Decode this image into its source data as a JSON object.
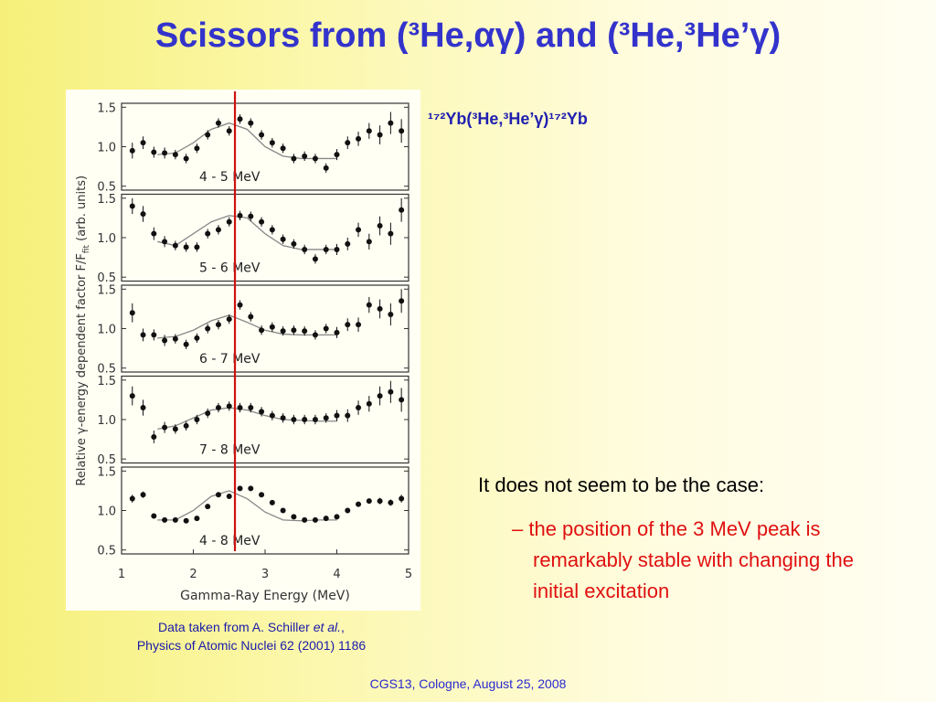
{
  "title": "Scissors from (³He,αγ) and (³He,³He’γ)",
  "reaction": "¹⁷²Yb(³He,³He’γ)¹⁷²Yb",
  "bullets": {
    "main": "It does not seem to be the case:",
    "sub": "– the position of the 3 MeV peak is remarkably stable with changing the initial excitation"
  },
  "citation": {
    "line1_start": "Data taken from A. Schiller ",
    "line1_italic": "et al.",
    "line1_end": ",",
    "line2": "Physics of Atomic Nuclei 62 (2001) 1186"
  },
  "footer": "CGS13, Cologne, August 25, 2008",
  "marker_x": 2.58,
  "chart_data": [
    {
      "type": "scatter",
      "label": "4 - 5 MeV",
      "ylabel": {
        "main": "Relative γ-energy dependent factor F/F",
        "sub": "fit",
        "end": " (arb. units)"
      },
      "x": [
        1.15,
        1.3,
        1.45,
        1.6,
        1.75,
        1.9,
        2.05,
        2.2,
        2.35,
        2.5,
        2.65,
        2.8,
        2.95,
        3.1,
        3.25,
        3.4,
        3.55,
        3.7,
        3.85,
        4.0,
        4.15,
        4.3,
        4.45,
        4.6,
        4.75,
        4.9
      ],
      "values": [
        0.95,
        1.05,
        0.93,
        0.92,
        0.9,
        0.85,
        0.98,
        1.15,
        1.3,
        1.2,
        1.35,
        1.3,
        1.15,
        1.05,
        0.98,
        0.85,
        0.88,
        0.85,
        0.73,
        0.9,
        1.05,
        1.1,
        1.2,
        1.15,
        1.3,
        1.2
      ],
      "errors": [
        0.1,
        0.08,
        0.07,
        0.07,
        0.06,
        0.06,
        0.06,
        0.06,
        0.06,
        0.06,
        0.06,
        0.06,
        0.06,
        0.06,
        0.06,
        0.06,
        0.06,
        0.06,
        0.06,
        0.07,
        0.08,
        0.09,
        0.1,
        0.12,
        0.14,
        0.15
      ],
      "fit_x": [
        1.5,
        1.75,
        2.0,
        2.25,
        2.5,
        2.75,
        3.0,
        3.25,
        3.5,
        3.75,
        4.0
      ],
      "fit": [
        0.9,
        0.92,
        1.05,
        1.22,
        1.3,
        1.22,
        1.0,
        0.88,
        0.85,
        0.85,
        0.85
      ],
      "xlim": [
        1,
        5
      ],
      "ylim": [
        0.45,
        1.55
      ],
      "yticks": [
        0.5,
        {
          "value": 1,
          "label": "1.0"
        },
        1.5
      ],
      "color": "#111111"
    },
    {
      "type": "scatter",
      "label": "5 - 6 MeV",
      "x": [
        1.15,
        1.3,
        1.45,
        1.6,
        1.75,
        1.9,
        2.05,
        2.2,
        2.35,
        2.5,
        2.65,
        2.8,
        2.95,
        3.1,
        3.25,
        3.4,
        3.55,
        3.7,
        3.85,
        4.0,
        4.15,
        4.3,
        4.45,
        4.6,
        4.75,
        4.9
      ],
      "values": [
        1.4,
        1.3,
        1.05,
        0.95,
        0.9,
        0.88,
        0.88,
        1.05,
        1.1,
        1.2,
        1.28,
        1.27,
        1.2,
        1.1,
        0.98,
        0.92,
        0.85,
        0.73,
        0.85,
        0.85,
        0.92,
        1.1,
        0.95,
        1.15,
        1.05,
        1.35
      ],
      "errors": [
        0.1,
        0.1,
        0.08,
        0.07,
        0.06,
        0.06,
        0.06,
        0.06,
        0.06,
        0.06,
        0.06,
        0.06,
        0.06,
        0.06,
        0.06,
        0.06,
        0.06,
        0.06,
        0.06,
        0.07,
        0.08,
        0.09,
        0.1,
        0.12,
        0.14,
        0.15
      ],
      "fit_x": [
        1.5,
        1.75,
        2.0,
        2.25,
        2.5,
        2.75,
        3.0,
        3.25,
        3.5,
        3.75,
        4.0
      ],
      "fit": [
        0.95,
        0.9,
        1.05,
        1.2,
        1.28,
        1.25,
        1.05,
        0.9,
        0.85,
        0.85,
        0.85
      ],
      "xlim": [
        1,
        5
      ],
      "ylim": [
        0.45,
        1.55
      ],
      "yticks": [
        0.5,
        {
          "value": 1,
          "label": "1.0"
        },
        1.5
      ],
      "color": "#111111"
    },
    {
      "type": "scatter",
      "label": "6 - 7 MeV",
      "x": [
        1.15,
        1.3,
        1.45,
        1.6,
        1.75,
        1.9,
        2.05,
        2.2,
        2.35,
        2.5,
        2.65,
        2.8,
        2.95,
        3.1,
        3.25,
        3.4,
        3.55,
        3.7,
        3.85,
        4.0,
        4.15,
        4.3,
        4.45,
        4.6,
        4.75,
        4.9
      ],
      "values": [
        1.2,
        0.92,
        0.92,
        0.85,
        0.87,
        0.8,
        0.88,
        1.0,
        1.05,
        1.12,
        1.3,
        1.15,
        0.98,
        1.02,
        0.97,
        0.98,
        0.97,
        0.92,
        1.0,
        0.95,
        1.05,
        1.05,
        1.3,
        1.25,
        1.18,
        1.35
      ],
      "errors": [
        0.12,
        0.08,
        0.07,
        0.07,
        0.06,
        0.06,
        0.06,
        0.06,
        0.06,
        0.06,
        0.06,
        0.06,
        0.06,
        0.06,
        0.06,
        0.06,
        0.06,
        0.06,
        0.06,
        0.07,
        0.08,
        0.09,
        0.1,
        0.12,
        0.14,
        0.15
      ],
      "fit_x": [
        1.5,
        1.75,
        2.0,
        2.25,
        2.5,
        2.75,
        3.0,
        3.25,
        3.5,
        3.75,
        4.0
      ],
      "fit": [
        0.88,
        0.9,
        0.98,
        1.1,
        1.17,
        1.08,
        0.98,
        0.93,
        0.92,
        0.92,
        0.92
      ],
      "xlim": [
        1,
        5
      ],
      "ylim": [
        0.45,
        1.55
      ],
      "yticks": [
        0.5,
        {
          "value": 1,
          "label": "1.0"
        },
        1.5
      ],
      "color": "#111111"
    },
    {
      "type": "scatter",
      "label": "7 - 8 MeV",
      "x": [
        1.15,
        1.3,
        1.45,
        1.6,
        1.75,
        1.9,
        2.05,
        2.2,
        2.35,
        2.5,
        2.65,
        2.8,
        2.95,
        3.1,
        3.25,
        3.4,
        3.55,
        3.7,
        3.85,
        4.0,
        4.15,
        4.3,
        4.45,
        4.6,
        4.75,
        4.9
      ],
      "values": [
        1.3,
        1.15,
        0.78,
        0.9,
        0.88,
        0.92,
        1.0,
        1.08,
        1.15,
        1.17,
        1.15,
        1.15,
        1.1,
        1.05,
        1.02,
        1.0,
        1.0,
        1.0,
        1.02,
        1.05,
        1.05,
        1.15,
        1.2,
        1.3,
        1.35,
        1.25
      ],
      "errors": [
        0.12,
        0.1,
        0.08,
        0.07,
        0.06,
        0.06,
        0.06,
        0.06,
        0.06,
        0.06,
        0.06,
        0.06,
        0.06,
        0.06,
        0.06,
        0.06,
        0.06,
        0.06,
        0.06,
        0.07,
        0.08,
        0.09,
        0.1,
        0.12,
        0.14,
        0.15
      ],
      "fit_x": [
        1.5,
        1.75,
        2.0,
        2.25,
        2.5,
        2.75,
        3.0,
        3.25,
        3.5,
        3.75,
        4.0
      ],
      "fit": [
        0.88,
        0.92,
        1.02,
        1.12,
        1.15,
        1.12,
        1.05,
        1.0,
        0.99,
        0.98,
        0.98
      ],
      "xlim": [
        1,
        5
      ],
      "ylim": [
        0.45,
        1.55
      ],
      "yticks": [
        0.5,
        {
          "value": 1,
          "label": "1.0"
        },
        1.5
      ],
      "color": "#111111"
    },
    {
      "type": "scatter",
      "label": "4 - 8 MeV",
      "xlabel": "Gamma-Ray Energy (MeV)",
      "x": [
        1.15,
        1.3,
        1.45,
        1.6,
        1.75,
        1.9,
        2.05,
        2.2,
        2.35,
        2.5,
        2.65,
        2.8,
        2.95,
        3.1,
        3.25,
        3.4,
        3.55,
        3.7,
        3.85,
        4.0,
        4.15,
        4.3,
        4.45,
        4.6,
        4.75,
        4.9
      ],
      "values": [
        1.15,
        1.2,
        0.93,
        0.88,
        0.88,
        0.87,
        0.9,
        1.05,
        1.2,
        1.18,
        1.28,
        1.28,
        1.2,
        1.1,
        1.0,
        0.92,
        0.88,
        0.88,
        0.9,
        0.92,
        1.0,
        1.08,
        1.12,
        1.12,
        1.1,
        1.15
      ],
      "errors": [
        0.05,
        0.04,
        0.03,
        0.03,
        0.03,
        0.03,
        0.03,
        0.03,
        0.03,
        0.03,
        0.03,
        0.03,
        0.03,
        0.03,
        0.03,
        0.03,
        0.03,
        0.03,
        0.03,
        0.03,
        0.03,
        0.03,
        0.03,
        0.04,
        0.04,
        0.05
      ],
      "fit_x": [
        1.5,
        1.75,
        2.0,
        2.25,
        2.5,
        2.75,
        3.0,
        3.25,
        3.5,
        3.75,
        4.0
      ],
      "fit": [
        0.88,
        0.88,
        1.0,
        1.18,
        1.25,
        1.15,
        0.98,
        0.88,
        0.87,
        0.88,
        0.88
      ],
      "xlim": [
        1,
        5
      ],
      "ylim": [
        0.45,
        1.55
      ],
      "yticks": [
        0.5,
        {
          "value": 1,
          "label": "1.0"
        },
        1.5
      ],
      "xticks": [
        1,
        2,
        3,
        4,
        5
      ],
      "color": "#111111"
    }
  ]
}
